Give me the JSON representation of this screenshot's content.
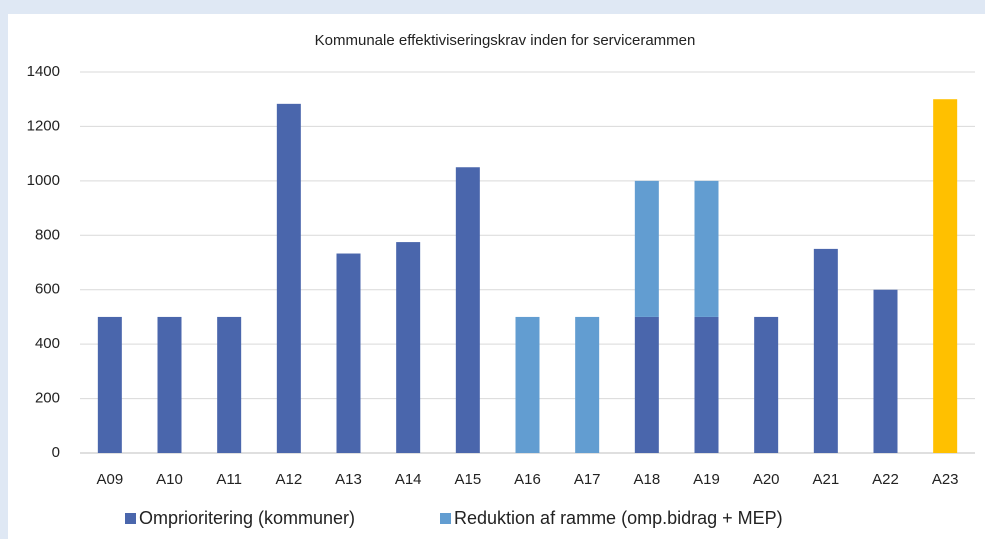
{
  "chart_data": {
    "type": "stacked-bar",
    "title": "Kommunale effektiviseringskrav inden for servicerammen",
    "categories": [
      "A09",
      "A10",
      "A11",
      "A12",
      "A13",
      "A14",
      "A15",
      "A16",
      "A17",
      "A18",
      "A19",
      "A20",
      "A21",
      "A22",
      "A23"
    ],
    "series": [
      {
        "name": "Omprioritering (kommuner)",
        "color": "#4a66ac",
        "colors": [
          "#4a66ac",
          "#4a66ac",
          "#4a66ac",
          "#4a66ac",
          "#4a66ac",
          "#4a66ac",
          "#4a66ac",
          "#4a66ac",
          "#4a66ac",
          "#4a66ac",
          "#4a66ac",
          "#4a66ac",
          "#4a66ac",
          "#4a66ac",
          "#ffc000"
        ],
        "values": [
          500,
          500,
          500,
          1283,
          733,
          775,
          1050,
          null,
          null,
          500,
          500,
          500,
          750,
          600,
          1300
        ]
      },
      {
        "name": "Reduktion af ramme (omp.bidrag + MEP)",
        "color": "#629dd1",
        "values": [
          null,
          null,
          null,
          null,
          null,
          null,
          null,
          500,
          500,
          500,
          500,
          null,
          null,
          null,
          null
        ]
      }
    ],
    "ylim": [
      0,
      1400
    ],
    "yticks": [
      0,
      200,
      400,
      600,
      800,
      1000,
      1200,
      1400
    ],
    "grid": true
  }
}
